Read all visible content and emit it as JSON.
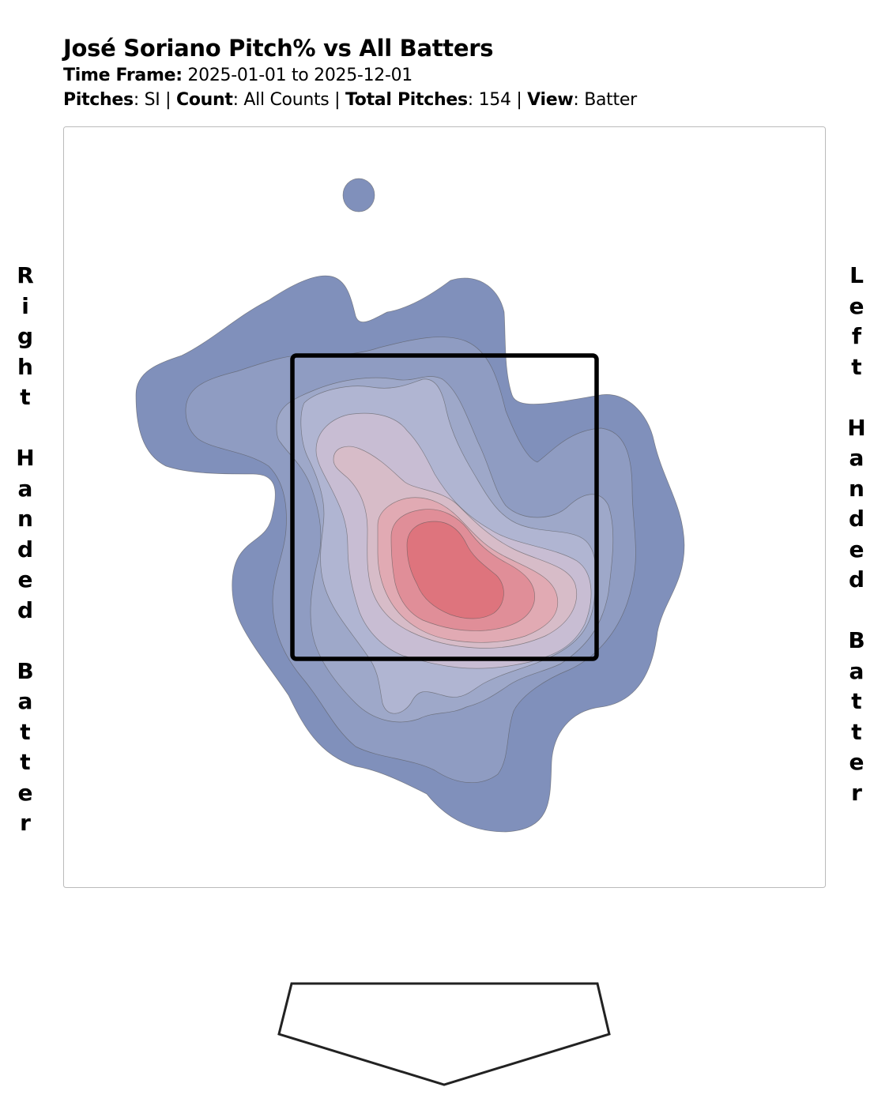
{
  "header": {
    "title": "José Soriano Pitch% vs All Batters",
    "timeframe_label": "Time Frame:",
    "timeframe_value": "2025-01-01 to 2025-12-01",
    "pitches_label": "Pitches",
    "pitches_value": "SI",
    "count_label": "Count",
    "count_value": "All Counts",
    "total_label": "Total Pitches",
    "total_value": "154",
    "view_label": "View",
    "view_value": "Batter"
  },
  "side_labels": {
    "left": "Right\n\nHanded\n\nBatter",
    "right": "Left\n\nHanded\n\nBatter"
  },
  "colors": {
    "low": "#8090bb",
    "mid": "#c9bcd0",
    "high": "#de747d",
    "zone_stroke": "#000000",
    "frame_stroke": "#bbbbbb"
  },
  "chart_data": {
    "type": "heatmap",
    "description_levels": 8,
    "total_pitches": 154,
    "pitch_type": "SI"
  }
}
